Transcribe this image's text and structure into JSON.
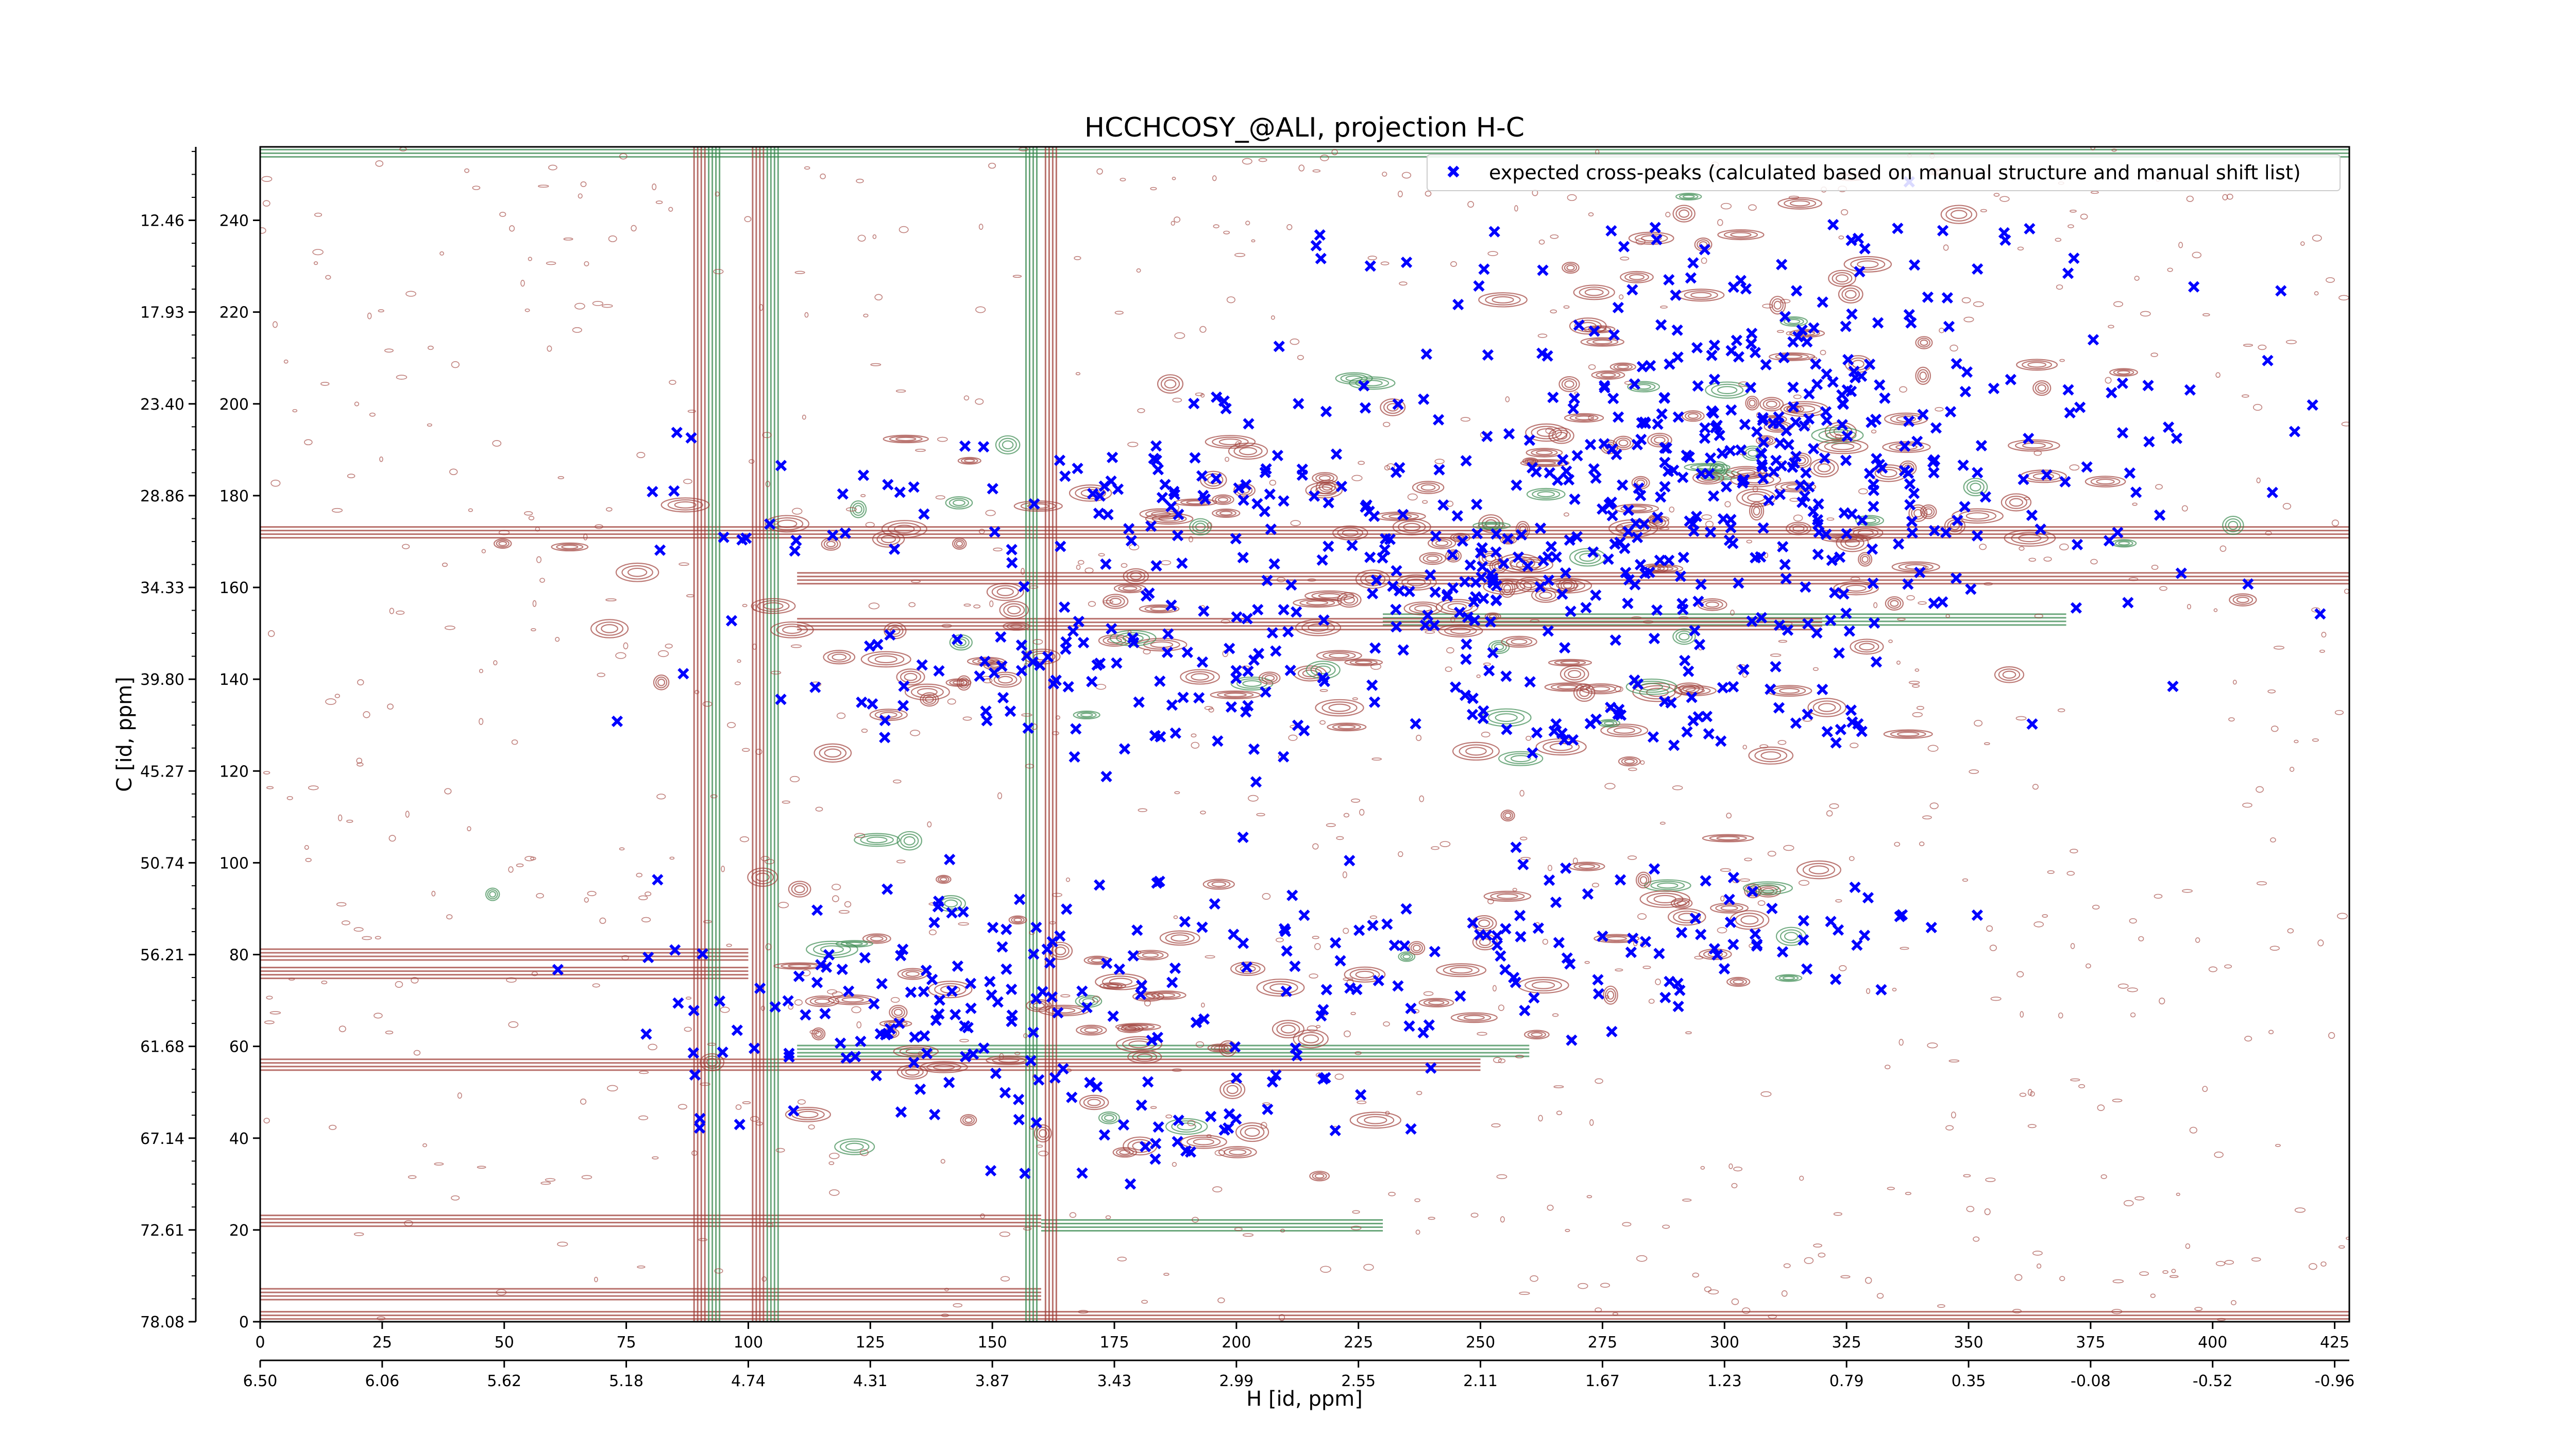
{
  "chart_data": {
    "type": "scatter",
    "title": "HCCHCOSY_@ALI, projection H-C",
    "xlabel": "H [id, ppm]",
    "ylabel": "C [id, ppm]",
    "x_index_range": [
      0,
      428
    ],
    "y_index_range": [
      0,
      256
    ],
    "x_index_ticks": [
      "0",
      "25",
      "50",
      "75",
      "100",
      "125",
      "150",
      "175",
      "200",
      "225",
      "250",
      "275",
      "300",
      "325",
      "350",
      "375",
      "400",
      "425"
    ],
    "x_ppm_ticks": [
      "6.50",
      "6.06",
      "5.62",
      "5.18",
      "4.74",
      "4.31",
      "3.87",
      "3.43",
      "2.99",
      "2.55",
      "2.11",
      "1.67",
      "1.23",
      "0.79",
      "0.35",
      "-0.08",
      "-0.52",
      "-0.96"
    ],
    "y_index_ticks": [
      "0",
      "20",
      "40",
      "60",
      "80",
      "100",
      "120",
      "140",
      "160",
      "180",
      "200",
      "220",
      "240"
    ],
    "y_ppm_ticks": [
      "78.08",
      "72.61",
      "67.14",
      "61.68",
      "56.21",
      "50.74",
      "45.27",
      "39.80",
      "34.33",
      "28.86",
      "23.40",
      "17.93",
      "12.46"
    ],
    "legend": {
      "position": "top-right"
    },
    "series": [
      {
        "name": "expected cross-peaks (calculated based on manual structure and manual shift list)",
        "color": "#0000ff",
        "marker": "x",
        "clusters": [
          {
            "cx": 290,
            "cy": 178,
            "sx": 55,
            "sy": 18,
            "n": 320
          },
          {
            "cx": 310,
            "cy": 200,
            "sx": 25,
            "sy": 15,
            "n": 110
          },
          {
            "cx": 250,
            "cy": 162,
            "sx": 12,
            "sy": 6,
            "n": 45
          },
          {
            "cx": 310,
            "cy": 230,
            "sx": 35,
            "sy": 8,
            "n": 40
          },
          {
            "cx": 290,
            "cy": 132,
            "sx": 30,
            "sy": 4,
            "n": 40
          },
          {
            "cx": 200,
            "cy": 140,
            "sx": 35,
            "sy": 8,
            "n": 60
          },
          {
            "cx": 140,
            "cy": 140,
            "sx": 25,
            "sy": 8,
            "n": 45
          },
          {
            "cx": 140,
            "cy": 70,
            "sx": 28,
            "sy": 15,
            "n": 110
          },
          {
            "cx": 240,
            "cy": 78,
            "sx": 45,
            "sy": 12,
            "n": 110
          },
          {
            "cx": 140,
            "cy": 175,
            "sx": 40,
            "sy": 8,
            "n": 40
          },
          {
            "cx": 180,
            "cy": 42,
            "sx": 30,
            "sy": 6,
            "n": 30
          },
          {
            "cx": 295,
            "cy": 88,
            "sx": 20,
            "sy": 5,
            "n": 25
          },
          {
            "cx": 190,
            "cy": 180,
            "sx": 25,
            "sy": 6,
            "n": 25
          }
        ]
      },
      {
        "name": "",
        "color": "#a0403a",
        "kind": "positive contours"
      },
      {
        "name": "",
        "color": "#3a8a50",
        "kind": "negative contours"
      }
    ]
  }
}
